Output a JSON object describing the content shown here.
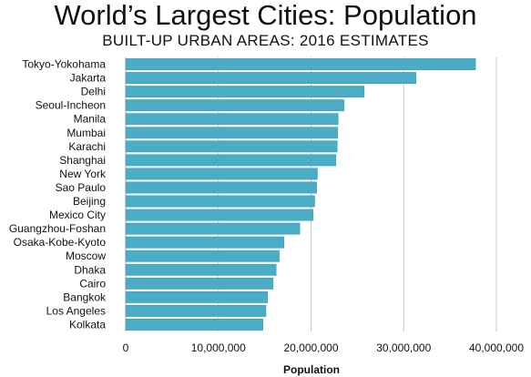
{
  "chart_data": {
    "type": "bar",
    "orientation": "horizontal",
    "title": "World’s Largest Cities: Population",
    "subtitle": "BUILT-UP URBAN AREAS: 2016 ESTIMATES",
    "xlabel": "Population",
    "ylabel": "",
    "xlim": [
      0,
      40000000
    ],
    "xticks": [
      0,
      10000000,
      20000000,
      30000000,
      40000000
    ],
    "xtick_labels": [
      "0",
      "10,000,000",
      "20,000,000",
      "30,000,000",
      "40,000,000"
    ],
    "grid": true,
    "bar_color": "#4bacc6",
    "categories": [
      "Tokyo-Yokohama",
      "Jakarta",
      "Delhi",
      "Seoul-Incheon",
      "Manila",
      "Mumbai",
      "Karachi",
      "Shanghai",
      "New York",
      "Sao Paulo",
      "Beijing",
      "Mexico City",
      "Guangzhou-Foshan",
      "Osaka-Kobe-Kyoto",
      "Moscow",
      "Dhaka",
      "Cairo",
      "Bangkok",
      "Los Angeles",
      "Kolkata"
    ],
    "values": [
      37750000,
      31320000,
      25735000,
      23575000,
      22930000,
      22885000,
      22825000,
      22685000,
      20685000,
      20605000,
      20390000,
      20230000,
      18785000,
      17075000,
      16570000,
      16235000,
      15910000,
      15315000,
      15135000,
      14810000
    ]
  }
}
